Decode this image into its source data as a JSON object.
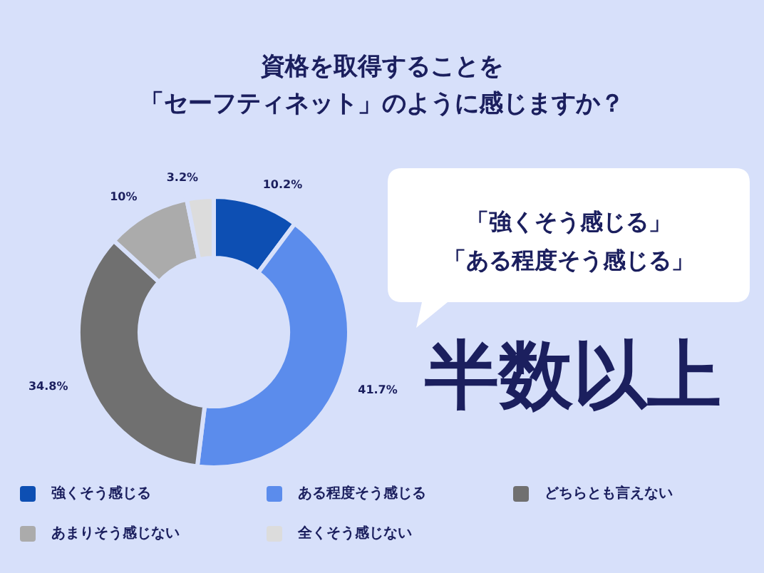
{
  "chart_data": {
    "type": "donut",
    "title": "資格を取得することを",
    "subtitle": "「セーフティネット」のように感じますか？",
    "categories": [
      "強くそう感じる",
      "ある程度そう感じる",
      "どちらとも言えない",
      "あまりそう感じない",
      "全くそう感じない"
    ],
    "values": [
      10.2,
      41.7,
      34.8,
      10,
      3.2
    ],
    "value_labels": [
      "10.2%",
      "41.7%",
      "34.8%",
      "10%",
      "3.2%"
    ],
    "colors": [
      "#0d4fb3",
      "#5b8cec",
      "#707070",
      "#ababab",
      "#dcdcdc"
    ],
    "legend": "bottom",
    "annotations": [
      "「強くそう感じる」",
      "「ある程度そう感じる」",
      "半数以上"
    ]
  }
}
